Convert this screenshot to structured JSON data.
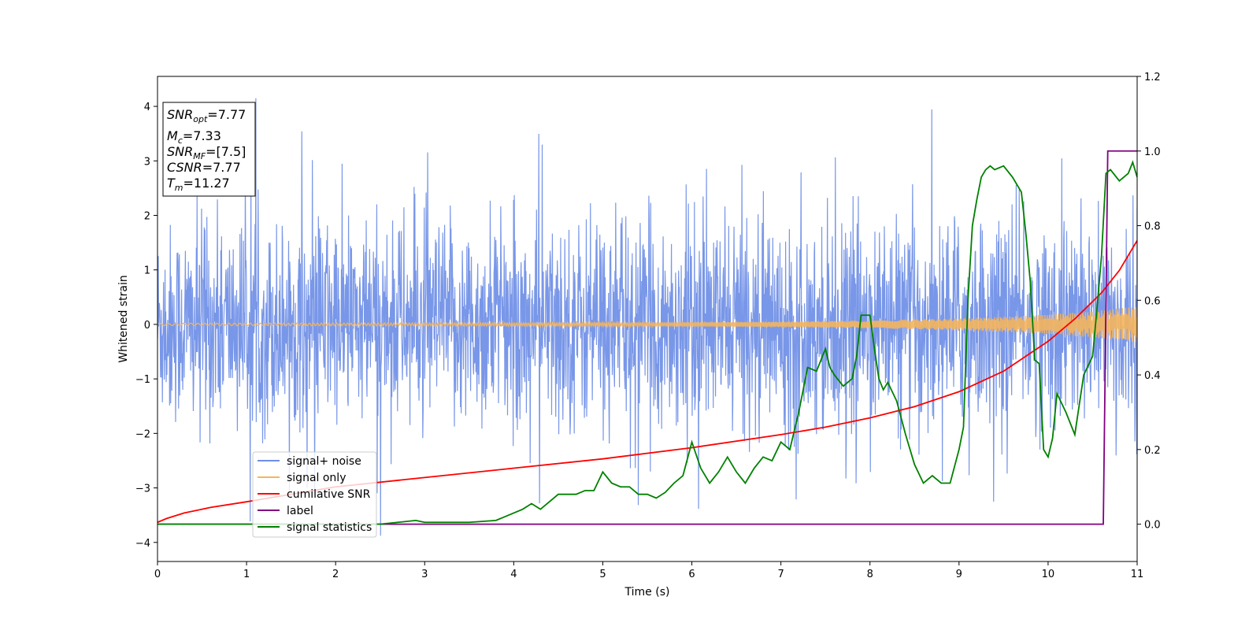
{
  "chart_data": {
    "type": "line",
    "xlabel": "Time (s)",
    "ylabel": "Whitened strain",
    "xlim": [
      0,
      11
    ],
    "ylim": [
      -4.35,
      4.55
    ],
    "ylim_right": [
      -0.1,
      1.2
    ],
    "xticks": [
      "0",
      "1",
      "2",
      "3",
      "4",
      "5",
      "6",
      "7",
      "8",
      "9",
      "10",
      "11"
    ],
    "yticks_left": [
      "−4",
      "−3",
      "−2",
      "−1",
      "0",
      "1",
      "2",
      "3",
      "4"
    ],
    "yticks_right": [
      "0.0",
      "0.2",
      "0.4",
      "0.6",
      "0.8",
      "1.0",
      "1.2"
    ],
    "grid": false,
    "legend_placement": "lower-left",
    "info_box": {
      "snr_opt": "7.77",
      "mc": "7.33",
      "snr_mf": "[7.5]",
      "csnr": "7.77",
      "tm": "11.27"
    },
    "series": [
      {
        "name": "signal+ noise",
        "color": "#6e8ee6",
        "axis": "left",
        "description": "noisy whitened strain, roughly ±2 sigma around 0 with spikes up to about 4.2 and down to about -3.9"
      },
      {
        "name": "signal only",
        "color": "#f5b55c",
        "axis": "left",
        "envelope_t": [
          0,
          2,
          4,
          6,
          7,
          8,
          8.5,
          9,
          9.5,
          10,
          10.5,
          11
        ],
        "envelope_amp": [
          0.02,
          0.025,
          0.03,
          0.04,
          0.05,
          0.07,
          0.09,
          0.11,
          0.14,
          0.18,
          0.24,
          0.33
        ]
      },
      {
        "name": "cumilative SNR",
        "color": "#ff0000",
        "axis": "right",
        "x": [
          0,
          0.1,
          0.3,
          0.6,
          1,
          2,
          3,
          4,
          5,
          6,
          7,
          7.5,
          8,
          8.5,
          9,
          9.5,
          10,
          10.3,
          10.6,
          10.8,
          11
        ],
        "y": [
          0.005,
          0.015,
          0.03,
          0.045,
          0.06,
          0.1,
          0.125,
          0.15,
          0.175,
          0.205,
          0.24,
          0.26,
          0.285,
          0.315,
          0.355,
          0.41,
          0.49,
          0.55,
          0.62,
          0.68,
          0.76
        ]
      },
      {
        "name": "label",
        "color": "#800080",
        "axis": "right",
        "x": [
          0,
          10.62,
          10.67,
          11
        ],
        "y": [
          0,
          0,
          1,
          1
        ]
      },
      {
        "name": "signal statistics",
        "color": "#008000",
        "axis": "right",
        "x": [
          0,
          2.5,
          2.7,
          2.9,
          3.0,
          3.5,
          3.8,
          4.0,
          4.1,
          4.2,
          4.3,
          4.4,
          4.5,
          4.6,
          4.7,
          4.8,
          4.9,
          5.0,
          5.1,
          5.2,
          5.3,
          5.4,
          5.5,
          5.6,
          5.7,
          5.8,
          5.9,
          6.0,
          6.1,
          6.2,
          6.3,
          6.4,
          6.5,
          6.6,
          6.7,
          6.8,
          6.9,
          7.0,
          7.1,
          7.2,
          7.3,
          7.4,
          7.5,
          7.55,
          7.6,
          7.7,
          7.8,
          7.85,
          7.9,
          7.95,
          8.0,
          8.05,
          8.1,
          8.15,
          8.2,
          8.3,
          8.4,
          8.5,
          8.6,
          8.7,
          8.8,
          8.9,
          9.0,
          9.05,
          9.1,
          9.15,
          9.2,
          9.25,
          9.3,
          9.35,
          9.4,
          9.5,
          9.6,
          9.7,
          9.75,
          9.8,
          9.85,
          9.9,
          9.95,
          10.0,
          10.05,
          10.1,
          10.2,
          10.3,
          10.4,
          10.5,
          10.55,
          10.6,
          10.65,
          10.7,
          10.8,
          10.9,
          10.95,
          11.0
        ],
        "y": [
          0,
          0,
          0.005,
          0.01,
          0.005,
          0.005,
          0.01,
          0.03,
          0.04,
          0.055,
          0.04,
          0.06,
          0.08,
          0.08,
          0.08,
          0.09,
          0.09,
          0.14,
          0.11,
          0.1,
          0.1,
          0.08,
          0.08,
          0.07,
          0.085,
          0.11,
          0.13,
          0.22,
          0.15,
          0.11,
          0.14,
          0.18,
          0.14,
          0.11,
          0.15,
          0.18,
          0.17,
          0.22,
          0.2,
          0.3,
          0.42,
          0.41,
          0.47,
          0.42,
          0.4,
          0.37,
          0.39,
          0.45,
          0.56,
          0.56,
          0.56,
          0.47,
          0.39,
          0.36,
          0.38,
          0.33,
          0.24,
          0.16,
          0.11,
          0.13,
          0.11,
          0.11,
          0.2,
          0.26,
          0.6,
          0.8,
          0.87,
          0.93,
          0.95,
          0.96,
          0.95,
          0.96,
          0.93,
          0.89,
          0.78,
          0.65,
          0.44,
          0.43,
          0.2,
          0.18,
          0.23,
          0.35,
          0.3,
          0.24,
          0.4,
          0.45,
          0.58,
          0.72,
          0.94,
          0.95,
          0.92,
          0.94,
          0.97,
          0.93
        ]
      }
    ]
  }
}
